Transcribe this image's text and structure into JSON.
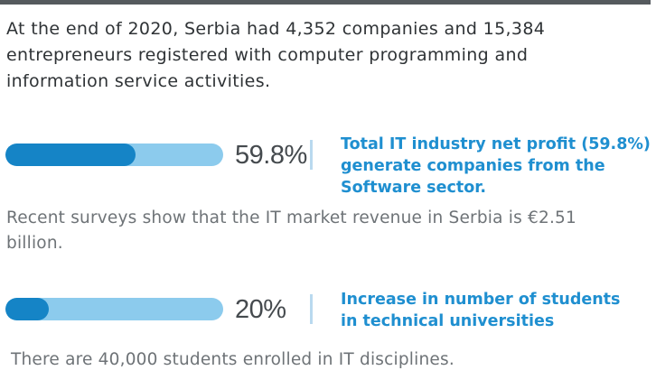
{
  "intro_text": "At the end of 2020, Serbia had 4,352 companies and 15,384 entrepreneurs registered with computer programming and information service activities.",
  "stats": [
    {
      "percent_label": "59.8%",
      "bar_fill_fraction": 0.598,
      "caption": "Total IT industry net profit (59.8%) generate companies from the Software sector.",
      "note": "Recent surveys show that the IT market revenue in Serbia is €2.51 billion."
    },
    {
      "percent_label": "20%",
      "bar_fill_fraction": 0.2,
      "caption": "Increase in number of students in technical universities",
      "note": "There are 40,000  students enrolled in IT disciplines."
    }
  ],
  "colors": {
    "bar_fill": "#1584c6",
    "bar_track": "#8ccbed",
    "caption_text": "#1f8fd0",
    "percent_text": "#454a4e",
    "note_text": "#6e7377",
    "top_rule": "#555a5e"
  }
}
